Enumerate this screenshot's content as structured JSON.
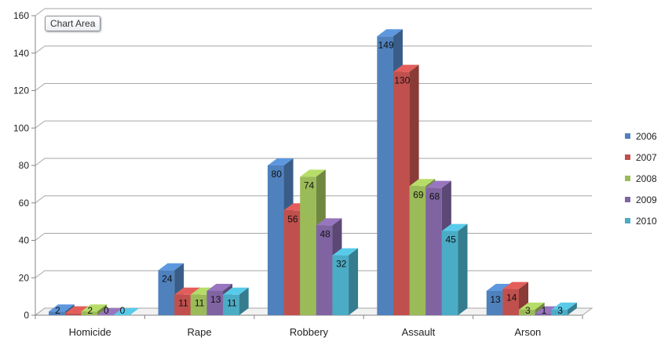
{
  "chart_data": {
    "type": "bar",
    "title": "",
    "xlabel": "",
    "ylabel": "",
    "categories": [
      "Homicide",
      "Rape",
      "Robbery",
      "Assault",
      "Arson"
    ],
    "series": [
      {
        "name": "2006",
        "color": "#4f81bd",
        "values": [
          2,
          24,
          80,
          149,
          13
        ]
      },
      {
        "name": "2007",
        "color": "#c0504d",
        "values": [
          1,
          11,
          56,
          130,
          14
        ]
      },
      {
        "name": "2008",
        "color": "#9bbb59",
        "values": [
          2,
          11,
          74,
          69,
          3
        ]
      },
      {
        "name": "2009",
        "color": "#8064a2",
        "values": [
          0,
          13,
          48,
          68,
          1
        ]
      },
      {
        "name": "2010",
        "color": "#4bacc6",
        "values": [
          0,
          11,
          32,
          45,
          3
        ]
      }
    ],
    "data_labels": [
      [
        "2",
        "",
        "2",
        "0",
        "0"
      ],
      [
        "24",
        "11",
        "11",
        "13",
        "11"
      ],
      [
        "80",
        "56",
        "74",
        "48",
        "32"
      ],
      [
        "149",
        "130",
        "69",
        "68",
        "45"
      ],
      [
        "13",
        "14",
        "3",
        "1",
        "3"
      ]
    ],
    "ylim": [
      0,
      160
    ],
    "yticks": [
      0,
      20,
      40,
      60,
      80,
      100,
      120,
      140,
      160
    ],
    "grid": true,
    "legend_position": "right",
    "style": "3d-clustered-column"
  },
  "tooltip": {
    "label": "Chart Area"
  }
}
